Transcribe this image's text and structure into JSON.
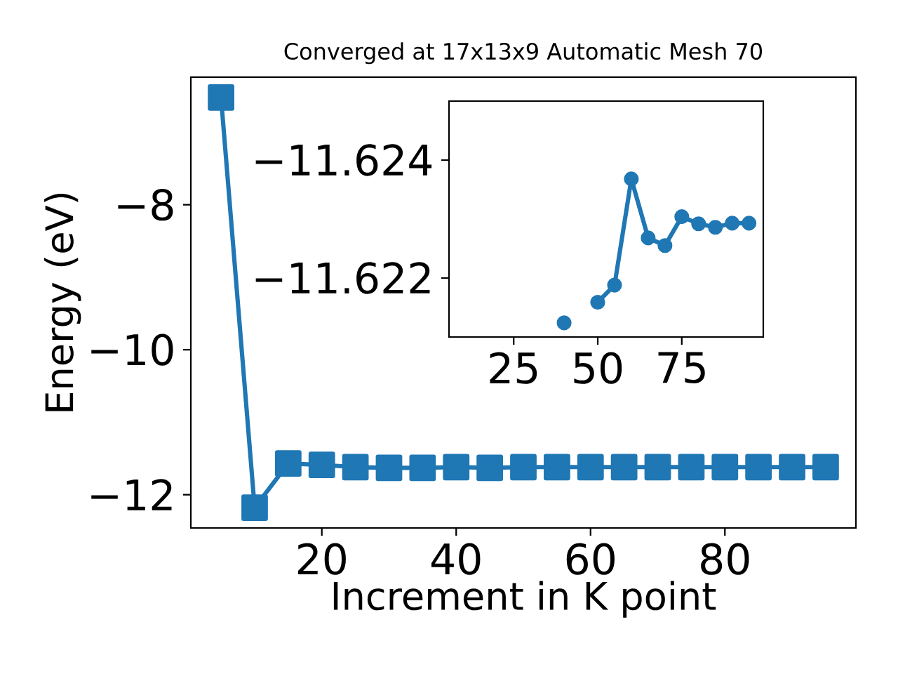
{
  "chart_data": [
    {
      "type": "line",
      "title": "Converged at 17x13x9 Automatic Mesh 70",
      "xlabel": "Increment in K point",
      "ylabel": "Energy (eV)",
      "x": [
        5,
        10,
        15,
        20,
        25,
        30,
        35,
        40,
        45,
        50,
        55,
        60,
        65,
        70,
        75,
        80,
        85,
        90,
        95
      ],
      "values": [
        -6.52,
        -12.18,
        -11.57,
        -11.59,
        -11.62,
        -11.63,
        -11.63,
        -11.62,
        -11.63,
        -11.62,
        -11.62,
        -11.62,
        -11.62,
        -11.62,
        -11.62,
        -11.62,
        -11.62,
        -11.62,
        -11.62
      ],
      "color": "#1f77b4",
      "marker": "square",
      "line_style": "solid",
      "xlim": [
        0.5,
        99.5
      ],
      "xticks": [
        20,
        40,
        60,
        80
      ],
      "ylim": [
        -12.46,
        -6.24
      ],
      "yticks": [
        {
          "value": -12,
          "label": "−12"
        },
        {
          "value": -10,
          "label": "−10"
        },
        {
          "value": -8,
          "label": "−8"
        }
      ]
    },
    {
      "type": "line",
      "x": [
        40,
        45,
        50,
        55,
        60,
        65,
        70,
        75,
        80,
        85,
        90,
        95
      ],
      "values": [
        -11.62124,
        null,
        -11.62159,
        -11.62188,
        -11.62368,
        -11.62268,
        -11.62255,
        -11.62304,
        -11.62292,
        -11.62286,
        -11.62293,
        -11.62293
      ],
      "color": "#1f77b4",
      "marker": "circle",
      "line_style": "solid",
      "xlim": [
        5.75,
        99.25
      ],
      "xticks": [
        25,
        50,
        75
      ],
      "ylim": [
        -11.621,
        -11.625
      ],
      "yticks": [
        {
          "value": -11.624,
          "label": "−11.624"
        },
        {
          "value": -11.622,
          "label": "−11.622"
        }
      ]
    }
  ]
}
